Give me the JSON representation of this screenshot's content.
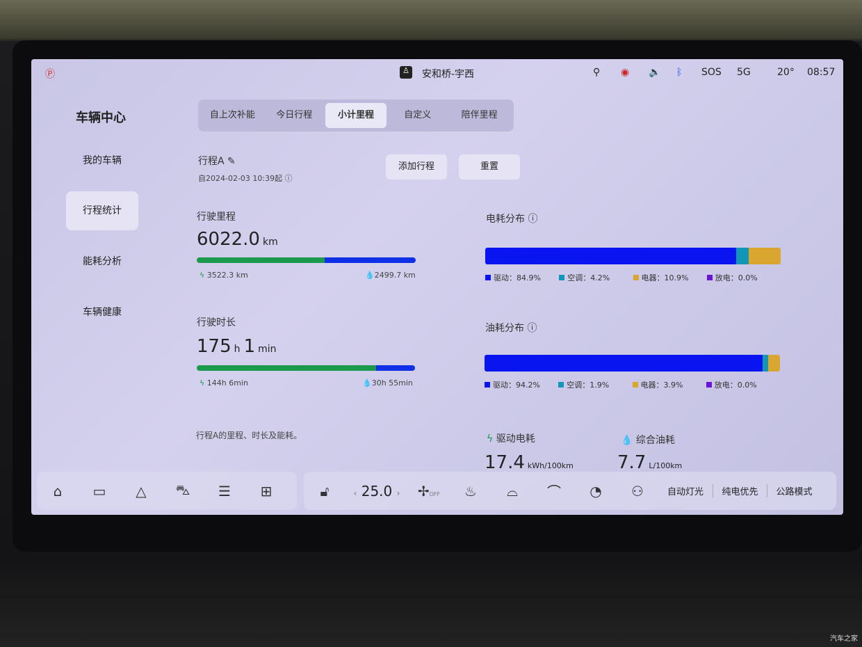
{
  "status": {
    "location": "安和桥-宇西",
    "sos": "SOS",
    "signal": "5G",
    "temp": "20°",
    "time": "08:57"
  },
  "sidebar": {
    "title": "车辆中心",
    "items": [
      {
        "label": "我的车辆"
      },
      {
        "label": "行程统计",
        "active": true
      },
      {
        "label": "能耗分析"
      },
      {
        "label": "车辆健康"
      }
    ]
  },
  "tabs": [
    {
      "label": "自上次补能"
    },
    {
      "label": "今日行程"
    },
    {
      "label": "小计里程",
      "active": true
    },
    {
      "label": "自定义"
    },
    {
      "label": "陪伴里程"
    }
  ],
  "trip": {
    "name": "行程A",
    "since": "自2024-02-03 10:39起",
    "add_label": "添加行程",
    "reset_label": "重置",
    "note": "行程A的里程、时长及能耗。"
  },
  "mileage": {
    "label": "行驶里程",
    "value": "6022.0",
    "unit": "km",
    "electric": "3522.3 km",
    "fuel": "2499.7 km",
    "electric_pct": 58.5
  },
  "duration": {
    "label": "行驶时长",
    "h": "175",
    "h_unit": "h",
    "m": "1",
    "m_unit": "min",
    "electric": "144h 6min",
    "fuel": "30h 55min",
    "electric_pct": 82.3
  },
  "elec_dist": {
    "title": "电耗分布",
    "items": [
      {
        "label": "驱动：84.9%",
        "pct": 84.9,
        "color": "#0a14f0"
      },
      {
        "label": "空调：4.2%",
        "pct": 4.2,
        "color": "#1296b8"
      },
      {
        "label": "电器：10.9%",
        "pct": 10.9,
        "color": "#d9a630"
      },
      {
        "label": "放电：0.0%",
        "pct": 0,
        "color": "#6a12d8"
      }
    ]
  },
  "fuel_dist": {
    "title": "油耗分布",
    "items": [
      {
        "label": "驱动：94.2%",
        "pct": 94.2,
        "color": "#0a14f0"
      },
      {
        "label": "空调：1.9%",
        "pct": 1.9,
        "color": "#1296b8"
      },
      {
        "label": "电器：3.9%",
        "pct": 3.9,
        "color": "#d9a630"
      },
      {
        "label": "放电：0.0%",
        "pct": 0,
        "color": "#6a12d8"
      }
    ]
  },
  "consumption": {
    "elec_label": "驱动电耗",
    "elec_value": "17.4",
    "elec_unit": "kWh/100km",
    "fuel_label": "综合油耗",
    "fuel_value": "7.7",
    "fuel_unit": "L/100km"
  },
  "dock": {
    "temperature": "25.0",
    "fan": "OFF",
    "auto_light": "自动灯光",
    "ev_priority": "纯电优先",
    "road_mode": "公路模式"
  },
  "colors": {
    "electric": "#1a9a4a",
    "fuel": "#1030e8"
  }
}
